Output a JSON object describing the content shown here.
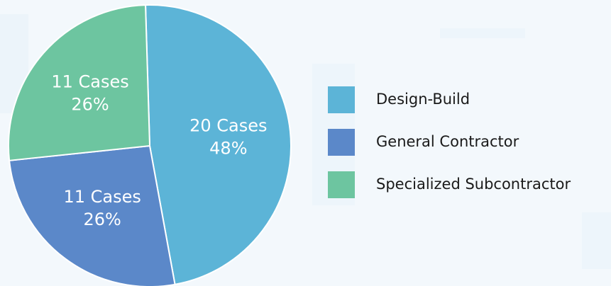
{
  "chart_data": {
    "type": "pie",
    "categories": [
      "Design-Build",
      "General Contractor",
      "Specialized Subcontractor"
    ],
    "values": [
      20,
      11,
      11
    ],
    "value_labels": [
      "20 Cases",
      "11 Cases",
      "11 Cases"
    ],
    "shares": {
      "values": [
        48,
        26,
        26
      ],
      "labels": [
        "48%",
        "26%",
        "26%"
      ]
    },
    "colors": [
      "#5cb4d7",
      "#5b88c9",
      "#6dc5a0"
    ],
    "legend": "right"
  }
}
